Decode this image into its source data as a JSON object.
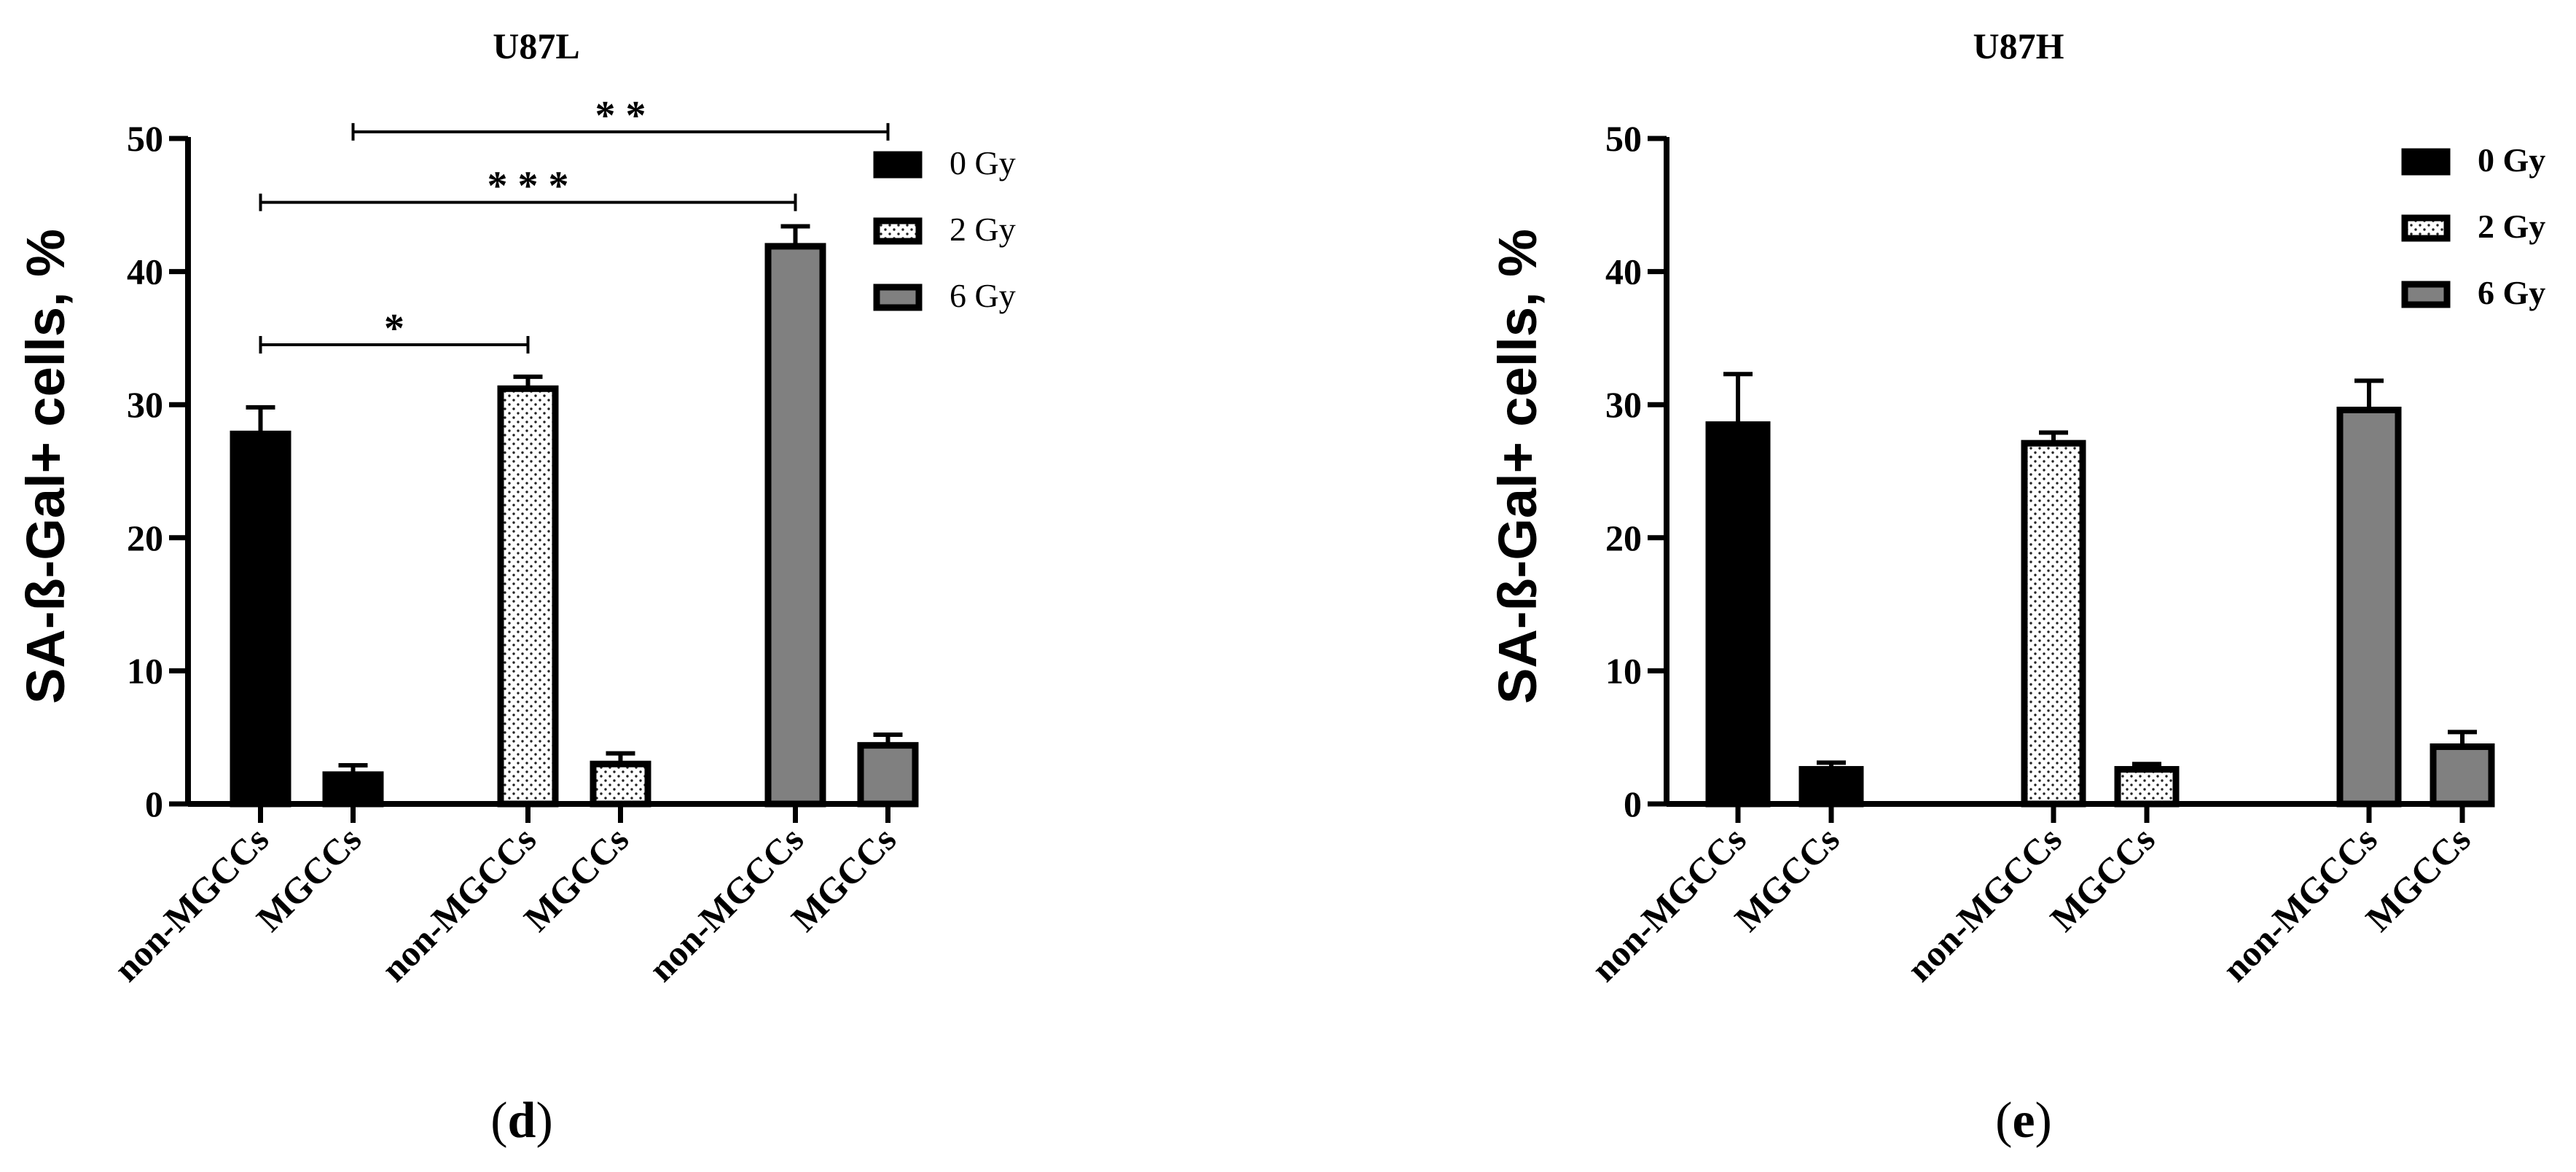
{
  "colors": {
    "dose_0": "#000000",
    "dose_2": "#ffffff",
    "dose_6": "#808080",
    "dots": "#222222",
    "stroke": "#000000"
  },
  "chart_data": [
    {
      "panel_label_letter": "d",
      "type": "bar",
      "title": "U87L",
      "ylabel": "SA-ß-Gal+ cells, %",
      "xlabel": "",
      "ylim": [
        0,
        50
      ],
      "yticks": [
        "0",
        "10",
        "20",
        "30",
        "40",
        "50"
      ],
      "categories": [
        "non-MGCCs",
        "MGCCs",
        "non-MGCCs",
        "MGCCs",
        "non-MGCCs",
        "MGCCs"
      ],
      "values": [
        27.8,
        2.2,
        31.2,
        3.0,
        41.9,
        4.4
      ],
      "errors": [
        2.0,
        0.7,
        0.9,
        0.8,
        1.5,
        0.8
      ],
      "groups": [
        0,
        0,
        1,
        1,
        2,
        2
      ],
      "legend": [
        "0 Gy",
        "2 Gy",
        "6 Gy"
      ],
      "legend_position": "top-right",
      "significance": [
        {
          "from": 0,
          "to": 2,
          "y": 34.5,
          "label": "*"
        },
        {
          "from": 0,
          "to": 4,
          "y": 45.2,
          "label": "* * *"
        },
        {
          "from": 1,
          "to": 5,
          "y": 50.5,
          "label": "* *"
        }
      ]
    },
    {
      "panel_label_letter": "e",
      "type": "bar",
      "title": "U87H",
      "ylabel": "SA-ß-Gal+ cells, %",
      "xlabel": "",
      "ylim": [
        0,
        50
      ],
      "yticks": [
        "0",
        "10",
        "20",
        "30",
        "40",
        "50"
      ],
      "categories": [
        "non-MGCCs",
        "MGCCs",
        "non-MGCCs",
        "MGCCs",
        "non-MGCCs",
        "MGCCs"
      ],
      "values": [
        28.5,
        2.6,
        27.1,
        2.6,
        29.6,
        4.3
      ],
      "errors": [
        3.8,
        0.5,
        0.8,
        0.4,
        2.2,
        1.1
      ],
      "groups": [
        0,
        0,
        1,
        1,
        2,
        2
      ],
      "legend": [
        "0 Gy",
        "2 Gy",
        "6 Gy"
      ],
      "legend_position": "top-right",
      "significance": []
    }
  ],
  "panel_labels": [
    {
      "open": "(",
      "letter": "d",
      "close": ")"
    },
    {
      "open": "(",
      "letter": "e",
      "close": ")"
    }
  ]
}
